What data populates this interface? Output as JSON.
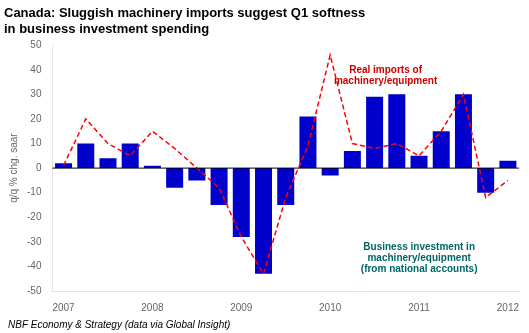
{
  "chart_data": {
    "type": "bar",
    "title": "Canada: Sluggish machinery imports suggest Q1 softness\nin business investment spending",
    "y_label": "q/q % chg. saar",
    "source": "NBF Economy & Strategy (data via Global Insight)",
    "categories": [
      "2007",
      null,
      null,
      null,
      "2008",
      null,
      null,
      null,
      "2009",
      null,
      null,
      null,
      "2010",
      null,
      null,
      null,
      "2011",
      null,
      null,
      null,
      "2012"
    ],
    "series": [
      {
        "type": "bar",
        "color": "#0000cc",
        "values": [
          2,
          10,
          4,
          10,
          1,
          -8,
          -5,
          -15,
          -28,
          -43,
          -15,
          21,
          -3,
          7,
          29,
          30,
          5,
          15,
          30,
          -10,
          3
        ]
      },
      {
        "type": "line",
        "color": "#ff0000",
        "line_style": "dashed",
        "values": [
          1,
          20,
          10,
          5,
          15,
          8,
          0,
          -8,
          -28,
          -43,
          -12,
          9,
          46,
          10,
          8,
          10,
          5,
          15,
          30,
          -12,
          -5
        ]
      }
    ],
    "ylim": [
      -50,
      50
    ],
    "yticks": [
      -50,
      -40,
      -30,
      -20,
      -10,
      0,
      10,
      20,
      30,
      40,
      50
    ],
    "grid": false,
    "legend": false,
    "annotations": [
      {
        "text": "Real imports of\nmachinery/equipment",
        "color": "#cc0000"
      },
      {
        "text": "Business investment in\nmachinery/equipment\n(from national accounts)",
        "color": "#006666"
      }
    ]
  }
}
